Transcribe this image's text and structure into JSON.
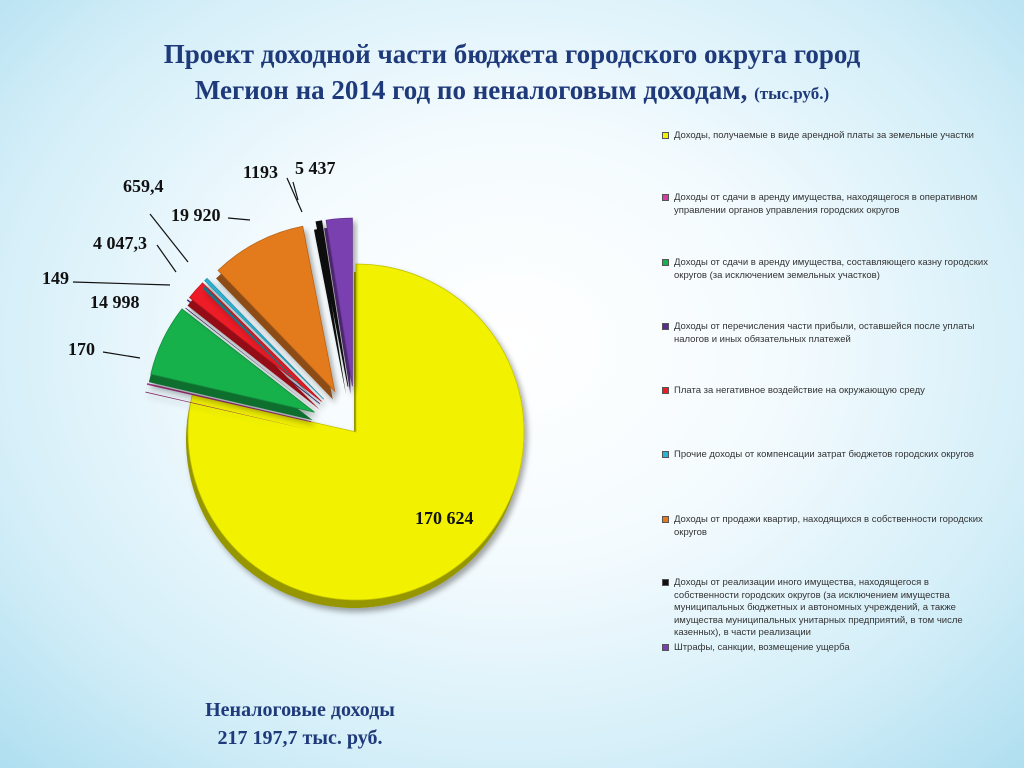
{
  "title": {
    "line1": "Проект доходной части бюджета городского округа город",
    "line2": "Мегион на 2014 год по неналоговым доходам,",
    "unit": "(тыс.руб.)"
  },
  "total": {
    "line1": "Неналоговые доходы",
    "line2": "217 197,7 тыс. руб."
  },
  "chart_data": {
    "type": "pie",
    "title": "Проект доходной части бюджета городского округа город Мегион на 2014 год по неналоговым доходам, (тыс.руб.)",
    "legend_position": "right",
    "slices": [
      {
        "label": "Доходы, получаемые в виде арендной платы за земельные участки",
        "value": 170624,
        "value_label": "170 624",
        "color": "#f2f200"
      },
      {
        "label": "Доходы от сдачи в аренду имущества, находящегося в оперативном управлении органов управления городских округов",
        "value": 170,
        "value_label": "170",
        "color": "#d63fa1"
      },
      {
        "label": "Доходы от сдачи в аренду имущества, составляющего казну городских округов (за исключением земельных участков)",
        "value": 14998,
        "value_label": "14 998",
        "color": "#17b14c"
      },
      {
        "label": "Доходы от перечисления части прибыли, оставшейся после уплаты налогов и иных обязательных платежей",
        "value": 149,
        "value_label": "149",
        "color": "#5a2d91"
      },
      {
        "label": "Плата за негативное воздействие на окружающую среду",
        "value": 4047.3,
        "value_label": "4 047,3",
        "color": "#ee1c25"
      },
      {
        "label": "Прочие доходы от компенсации затрат бюджетов городских округов",
        "value": 659.4,
        "value_label": "659,4",
        "color": "#2bb3d4"
      },
      {
        "label": "Доходы от продажи квартир, находящихся в собственности городских округов",
        "value": 19920,
        "value_label": "19 920",
        "color": "#e37a1e"
      },
      {
        "label": "Доходы от реализации иного имущества, находящегося в собственности городских округов (за исключением имущества муниципальных бюджетных и автономных учреждений, а также имущества муниципальных унитарных предприятий, в том числе казенных), в части реализации",
        "value": 1193,
        "value_label": "1193",
        "color": "#111111"
      },
      {
        "label": "Штрафы, санкции, возмещение ущерба",
        "value": 5437,
        "value_label": "5 437",
        "color": "#7a3fb0"
      }
    ]
  }
}
